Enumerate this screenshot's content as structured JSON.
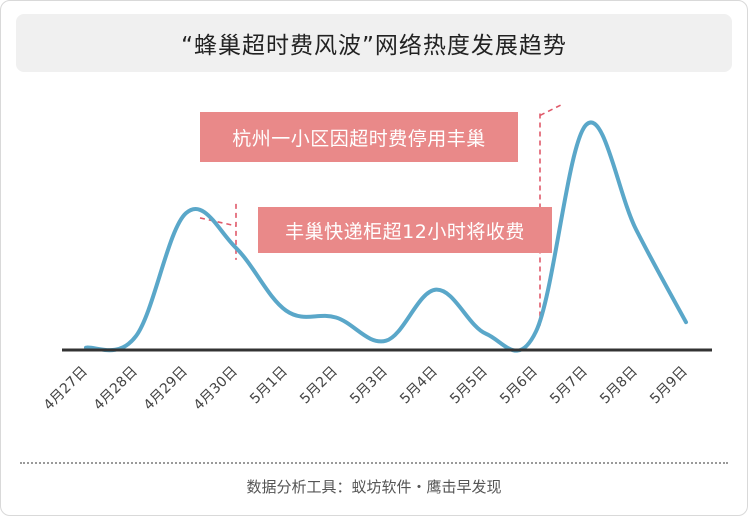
{
  "chart_data": {
    "type": "line",
    "title": "“蜂巢超时费风波”网络热度发展趋势",
    "xlabel": "",
    "ylabel": "",
    "categories": [
      "4月27日",
      "4月28日",
      "4月29日",
      "4月30日",
      "5月1日",
      "5月2日",
      "5月3日",
      "5月4日",
      "5月5日",
      "5月6日",
      "5月7日",
      "5月8日",
      "5月9日"
    ],
    "series": [
      {
        "values": [
          1,
          6,
          59,
          44,
          17,
          14,
          4,
          26,
          7,
          8,
          97,
          52,
          12
        ]
      }
    ],
    "ylim": [
      0,
      100
    ],
    "grid": false,
    "legend": "none",
    "line_color": "#5aa7c9",
    "annotations": [
      {
        "category": "4月30日",
        "text": "丰巢快递柜超12小时将收费"
      },
      {
        "category": "5月6日",
        "text": "杭州一小区因超时费停用丰巢"
      }
    ]
  },
  "colors": {
    "callout": "#e98989",
    "axis": "#333333",
    "marker": "#e05a6a"
  },
  "footer": {
    "source": "数据分析工具：蚁坊软件・鹰击早发现"
  }
}
